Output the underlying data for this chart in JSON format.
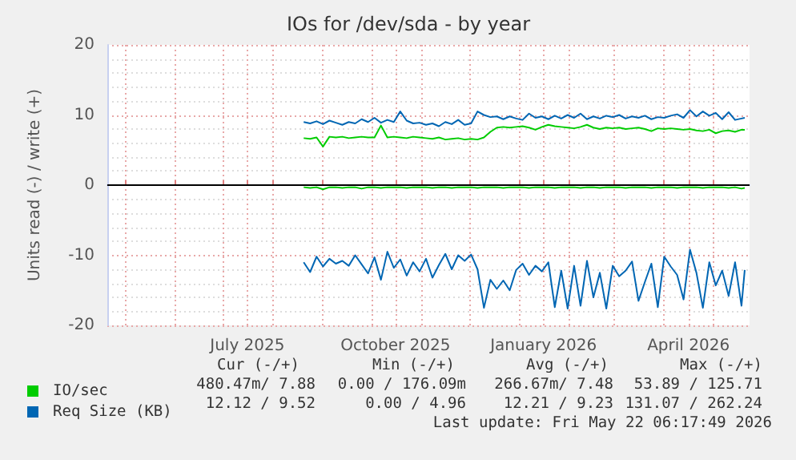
{
  "chart_data": {
    "type": "line",
    "title": "IOs for /dev/sda - by year",
    "ylabel": "Units read (-) / write (+)",
    "x": [
      "2025-08-20",
      "2025-08-24",
      "2025-08-28",
      "2025-09-01",
      "2025-09-05",
      "2025-09-09",
      "2025-09-13",
      "2025-09-17",
      "2025-09-21",
      "2025-09-25",
      "2025-09-29",
      "2025-10-03",
      "2025-10-07",
      "2025-10-11",
      "2025-10-15",
      "2025-10-19",
      "2025-10-23",
      "2025-10-27",
      "2025-10-31",
      "2025-11-04",
      "2025-11-08",
      "2025-11-12",
      "2025-11-16",
      "2025-11-20",
      "2025-11-24",
      "2025-11-28",
      "2025-12-02",
      "2025-12-06",
      "2025-12-10",
      "2025-12-14",
      "2025-12-18",
      "2025-12-22",
      "2025-12-26",
      "2025-12-30",
      "2026-01-03",
      "2026-01-07",
      "2026-01-11",
      "2026-01-15",
      "2026-01-19",
      "2026-01-23",
      "2026-01-27",
      "2026-01-31",
      "2026-02-04",
      "2026-02-08",
      "2026-02-12",
      "2026-02-16",
      "2026-02-20",
      "2026-02-24",
      "2026-02-28",
      "2026-03-04",
      "2026-03-08",
      "2026-03-12",
      "2026-03-16",
      "2026-03-20",
      "2026-03-24",
      "2026-03-28",
      "2026-04-01",
      "2026-04-05",
      "2026-04-09",
      "2026-04-13",
      "2026-04-17",
      "2026-04-21",
      "2026-04-25",
      "2026-04-29",
      "2026-05-03",
      "2026-05-07",
      "2026-05-11",
      "2026-05-15",
      "2026-05-19",
      "2026-05-21"
    ],
    "series": [
      {
        "name": "IO/sec",
        "color": "#00cc00",
        "values": [
          6.7,
          6.6,
          6.8,
          5.5,
          6.9,
          6.8,
          6.9,
          6.7,
          6.8,
          6.9,
          6.8,
          6.8,
          8.5,
          6.8,
          6.9,
          6.8,
          6.7,
          6.9,
          6.8,
          6.7,
          6.6,
          6.8,
          6.5,
          6.6,
          6.7,
          6.5,
          6.6,
          6.5,
          6.8,
          7.6,
          8.2,
          8.3,
          8.2,
          8.3,
          8.4,
          8.2,
          7.9,
          8.3,
          8.6,
          8.4,
          8.3,
          8.2,
          8.1,
          8.3,
          8.6,
          8.2,
          8.0,
          8.2,
          8.1,
          8.2,
          8.0,
          8.1,
          8.2,
          8.0,
          7.7,
          8.1,
          8.0,
          8.1,
          8.0,
          7.9,
          8.0,
          7.8,
          7.7,
          7.9,
          7.4,
          7.7,
          7.8,
          7.6,
          7.9,
          7.9
        ]
      },
      {
        "color": "#00cc00",
        "values": [
          -0.3,
          -0.4,
          -0.3,
          -0.6,
          -0.3,
          -0.3,
          -0.4,
          -0.3,
          -0.3,
          -0.5,
          -0.3,
          -0.3,
          -0.4,
          -0.3,
          -0.3,
          -0.3,
          -0.4,
          -0.3,
          -0.3,
          -0.3,
          -0.4,
          -0.3,
          -0.3,
          -0.4,
          -0.3,
          -0.3,
          -0.3,
          -0.4,
          -0.3,
          -0.3,
          -0.3,
          -0.4,
          -0.3,
          -0.3,
          -0.3,
          -0.4,
          -0.3,
          -0.3,
          -0.3,
          -0.4,
          -0.3,
          -0.3,
          -0.3,
          -0.4,
          -0.3,
          -0.3,
          -0.4,
          -0.3,
          -0.3,
          -0.3,
          -0.4,
          -0.3,
          -0.3,
          -0.3,
          -0.4,
          -0.3,
          -0.3,
          -0.3,
          -0.4,
          -0.3,
          -0.3,
          -0.3,
          -0.4,
          -0.3,
          -0.3,
          -0.3,
          -0.4,
          -0.3,
          -0.5,
          -0.4
        ]
      },
      {
        "name": "Req Size (KB)",
        "color": "#0066b3",
        "values": [
          9.0,
          8.8,
          9.1,
          8.7,
          9.2,
          8.9,
          8.6,
          9.0,
          8.8,
          9.4,
          9.0,
          9.6,
          8.9,
          9.3,
          9.0,
          10.5,
          9.2,
          8.8,
          8.9,
          8.6,
          8.8,
          8.4,
          9.0,
          8.7,
          9.3,
          8.6,
          8.8,
          10.5,
          10.0,
          9.7,
          9.8,
          9.4,
          9.8,
          9.5,
          9.3,
          10.2,
          9.6,
          9.8,
          9.4,
          9.9,
          9.5,
          10.0,
          9.6,
          10.2,
          9.4,
          9.8,
          9.5,
          9.9,
          9.7,
          10.0,
          9.5,
          9.8,
          9.6,
          9.9,
          9.4,
          9.7,
          9.6,
          9.9,
          10.1,
          9.6,
          10.7,
          9.8,
          10.5,
          9.9,
          10.3,
          9.4,
          10.4,
          9.3,
          9.5,
          9.6
        ]
      },
      {
        "color": "#0066b3",
        "values": [
          -11.0,
          -12.4,
          -10.2,
          -11.6,
          -10.5,
          -11.2,
          -10.8,
          -11.5,
          -10.0,
          -11.3,
          -12.6,
          -10.3,
          -13.5,
          -9.5,
          -11.8,
          -10.6,
          -12.9,
          -11.0,
          -12.3,
          -10.5,
          -13.2,
          -11.4,
          -9.8,
          -12.0,
          -10.0,
          -10.8,
          -9.9,
          -12.0,
          -17.5,
          -13.5,
          -14.8,
          -13.6,
          -15.0,
          -12.1,
          -11.2,
          -12.8,
          -11.5,
          -12.3,
          -11.0,
          -17.4,
          -12.2,
          -17.6,
          -11.5,
          -17.2,
          -10.8,
          -16.0,
          -12.5,
          -17.6,
          -11.5,
          -13.0,
          -12.2,
          -10.9,
          -16.5,
          -13.8,
          -11.2,
          -17.4,
          -10.2,
          -11.6,
          -12.8,
          -16.3,
          -9.2,
          -12.5,
          -17.5,
          -11.0,
          -14.3,
          -12.2,
          -15.8,
          -11.0,
          -17.2,
          -12.1
        ]
      }
    ],
    "xlim": [
      "2025-04-20",
      "2026-05-24"
    ],
    "xticks": [
      {
        "value": "2025-05-01",
        "label": null
      },
      {
        "value": "2025-06-01",
        "label": null
      },
      {
        "value": "2025-07-01",
        "label": null
      },
      {
        "value": "2025-07-16",
        "label": "July 2025"
      },
      {
        "value": "2025-08-01",
        "label": null
      },
      {
        "value": "2025-09-01",
        "label": null
      },
      {
        "value": "2025-10-01",
        "label": null
      },
      {
        "value": "2025-10-16",
        "label": "October 2025"
      },
      {
        "value": "2025-11-01",
        "label": null
      },
      {
        "value": "2025-12-01",
        "label": null
      },
      {
        "value": "2026-01-01",
        "label": null
      },
      {
        "value": "2026-01-16",
        "label": "January 2026"
      },
      {
        "value": "2026-02-01",
        "label": null
      },
      {
        "value": "2026-03-01",
        "label": null
      },
      {
        "value": "2026-04-01",
        "label": null
      },
      {
        "value": "2026-04-16",
        "label": "April 2026"
      },
      {
        "value": "2026-05-01",
        "label": null
      }
    ],
    "ylim": [
      -20,
      20
    ],
    "yticks": [
      -20,
      -10,
      0,
      10,
      20
    ],
    "ref_lines": [
      {
        "axis": "y",
        "value": 0,
        "color": "#000000"
      }
    ],
    "grid": true,
    "legend": "bottom left",
    "marker": "none",
    "line_style": "solid",
    "annotations": [
      "Cur (-/+)",
      "Min (-/+)",
      "Avg (-/+)",
      "Max (-/+)",
      "480.47m/ 7.88",
      "0.00 / 176.09m",
      "266.67m/ 7.48",
      "53.89 / 125.71",
      "12.12 / 9.52",
      "0.00 / 4.96",
      "12.21 / 9.23",
      "131.07 / 262.24",
      "Last update: Fri May 22 06:17:49 2026"
    ]
  }
}
